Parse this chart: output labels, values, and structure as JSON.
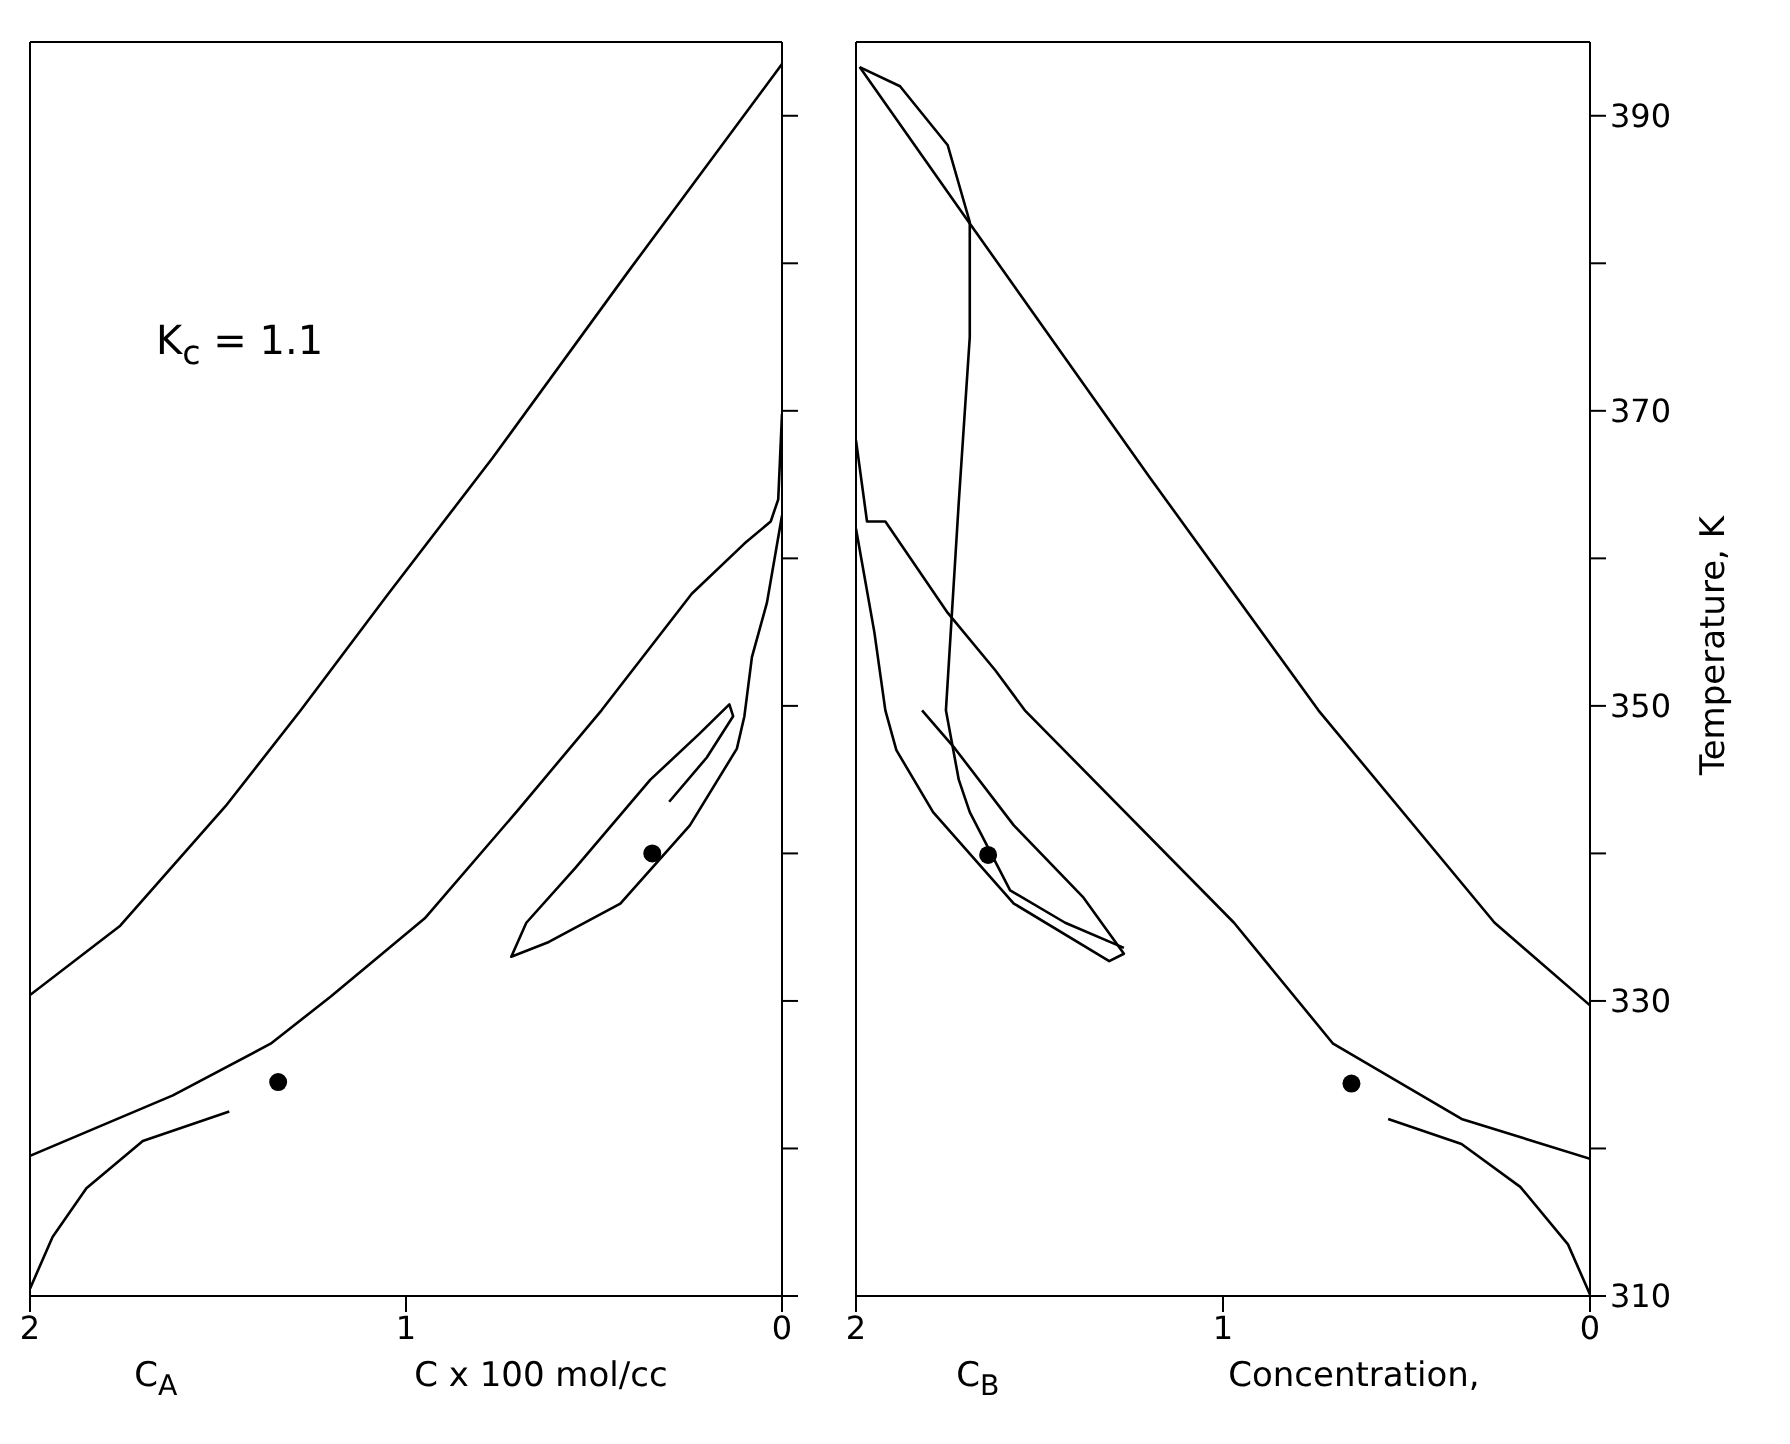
{
  "chart_data": [
    {
      "type": "line",
      "xlabel": "C$_{A}$",
      "xlim": [
        2,
        0
      ],
      "xticks": [
        2,
        1,
        0
      ],
      "ylim": [
        310,
        395
      ],
      "yticks": [
        310,
        {
          "value": 320,
          "label": null
        },
        330,
        {
          "value": 340,
          "label": null
        },
        350,
        {
          "value": 360,
          "label": null
        },
        370,
        {
          "value": 380,
          "label": null
        },
        390
      ],
      "tick_labels": "x",
      "marker": "none",
      "line_style": "solid",
      "annotations": [
        "C x 100 mol/cc",
        "K$_{c}$ = 1.1"
      ],
      "series": [
        {
          "color": "#000000",
          "x": [
            0.0,
            0.41,
            0.77,
            1.05,
            1.28,
            1.48,
            1.76,
            2.0
          ],
          "values": [
            393.5,
            379.4,
            366.8,
            357.5,
            349.7,
            343.2,
            335.1,
            330.4
          ]
        },
        {
          "type": "line",
          "color": "#000000",
          "x": [
            0.0,
            0.01,
            0.03,
            0.1,
            0.24,
            0.48,
            0.7,
            0.95,
            1.2,
            1.36,
            1.62,
            2.0
          ],
          "values": [
            369.8,
            364,
            362.5,
            361,
            357.6,
            349.7,
            343,
            335.6,
            330.3,
            327.1,
            323.6,
            319.5
          ]
        },
        {
          "type": "line",
          "color": "#000000",
          "x": [
            0.0,
            0.04,
            0.08,
            0.1,
            0.12,
            0.245,
            0.43,
            0.62,
            0.72,
            0.68,
            0.55,
            0.35,
            0.22,
            0.14,
            0.13,
            0.2,
            0.3
          ],
          "values": [
            362.9,
            357,
            353.3,
            349.3,
            347.1,
            341.9,
            336.6,
            334,
            333.0,
            335.3,
            339.0,
            345,
            348.1,
            350.1,
            349.3,
            346.5,
            343.5
          ]
        },
        {
          "type": "line",
          "color": "#000000",
          "x": [
            2.0,
            1.94,
            1.85,
            1.7,
            1.47
          ],
          "values": [
            310.5,
            314,
            317.3,
            320.5,
            322.5
          ]
        },
        {
          "type": "scatter",
          "marker": "circle",
          "color": "#000000",
          "x": [
            1.34,
            0.345
          ],
          "values": [
            324.5,
            340.0
          ]
        }
      ]
    },
    {
      "type": "line",
      "xlabel": "C$_{B}$",
      "ylabel": "Temperature,  K",
      "xlim": [
        2,
        0
      ],
      "xticks": [
        2,
        1,
        0
      ],
      "ylim": [
        310,
        395
      ],
      "yticks": [
        310,
        {
          "value": 320,
          "label": null
        },
        330,
        {
          "value": 340,
          "label": null
        },
        350,
        {
          "value": 360,
          "label": null
        },
        370,
        {
          "value": 380,
          "label": null
        },
        390
      ],
      "marker": "none",
      "line_style": "solid",
      "annotations": [
        "Concentration,"
      ],
      "series": [
        {
          "color": "#000000",
          "x": [
            1.99,
            1.69,
            1.2,
            0.74,
            0.26,
            0.0
          ],
          "values": [
            393.3,
            382.7,
            365.5,
            349.7,
            335.3,
            329.7
          ]
        },
        {
          "type": "line",
          "color": "#000000",
          "x": [
            1.99,
            1.88,
            1.75,
            1.69,
            1.69,
            1.72,
            1.755,
            1.72,
            1.69,
            1.58,
            1.43,
            1.27
          ],
          "values": [
            393.3,
            392,
            388,
            382.8,
            375,
            363.8,
            349.7,
            345,
            342.8,
            337.5,
            335.3,
            333.6
          ]
        },
        {
          "type": "line",
          "color": "#000000",
          "x": [
            2.0,
            1.97,
            1.92,
            1.75,
            1.62,
            1.54,
            0.97,
            0.7,
            0.35,
            0.0
          ],
          "values": [
            368,
            362.5,
            362.5,
            356.3,
            352.4,
            349.7,
            335.3,
            327.1,
            322,
            319.3
          ]
        },
        {
          "type": "line",
          "color": "#000000",
          "x": [
            2.0,
            1.95,
            1.92,
            1.89,
            1.79,
            1.57,
            1.31,
            1.27,
            1.38,
            1.57,
            1.73,
            1.82
          ],
          "values": [
            362,
            355,
            349.7,
            347,
            342.8,
            336.6,
            332.7,
            333.2,
            337.0,
            341.9,
            347.1,
            349.7
          ]
        },
        {
          "type": "line",
          "color": "#000000",
          "x": [
            0.0,
            0.06,
            0.19,
            0.35,
            0.55
          ],
          "values": [
            310.1,
            313.5,
            317.4,
            320.3,
            322.0
          ]
        },
        {
          "type": "scatter",
          "marker": "circle",
          "color": "#000000",
          "x": [
            0.65,
            1.64
          ],
          "values": [
            324.4,
            339.9
          ]
        }
      ]
    }
  ]
}
